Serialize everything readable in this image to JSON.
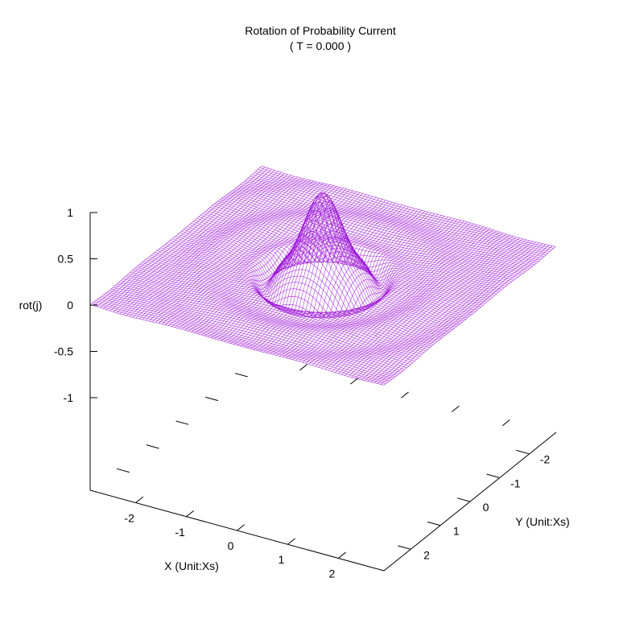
{
  "chart_data": {
    "type": "surface",
    "title": "Rotation of Probability Current",
    "subtitle": "( T = 0.000 )",
    "xlabel": "X (Unit:Xs)",
    "ylabel": "Y (Unit:Xs)",
    "zlabel": "rot(j)",
    "xlim": [
      -2.9,
      2.9
    ],
    "ylim": [
      -2.9,
      2.9
    ],
    "zlim": [
      -1,
      1
    ],
    "x_ticks": [
      {
        "value": -2,
        "label": "-2"
      },
      {
        "value": -1,
        "label": "-1"
      },
      {
        "value": 0,
        "label": "0"
      },
      {
        "value": 1,
        "label": "1"
      },
      {
        "value": 2,
        "label": "2"
      }
    ],
    "y_ticks": [
      {
        "value": -2,
        "label": "-2"
      },
      {
        "value": -1,
        "label": "-1"
      },
      {
        "value": 0,
        "label": "0"
      },
      {
        "value": 1,
        "label": "1"
      },
      {
        "value": 2,
        "label": "2"
      }
    ],
    "z_ticks": [
      {
        "value": 1,
        "label": "1"
      },
      {
        "value": 0.5,
        "label": "0.5"
      },
      {
        "value": 0,
        "label": "0"
      },
      {
        "value": -0.5,
        "label": "-0.5"
      },
      {
        "value": -1,
        "label": "-1"
      }
    ],
    "surface": {
      "z_base": 0,
      "central_peak": {
        "center_x": 0,
        "center_y": 0,
        "max_z": 0.85,
        "radius": 0.7
      },
      "ring": {
        "radius": 1.0,
        "min_z": -0.05
      },
      "color": "#9400d3"
    },
    "grid": false,
    "legend": "none"
  }
}
